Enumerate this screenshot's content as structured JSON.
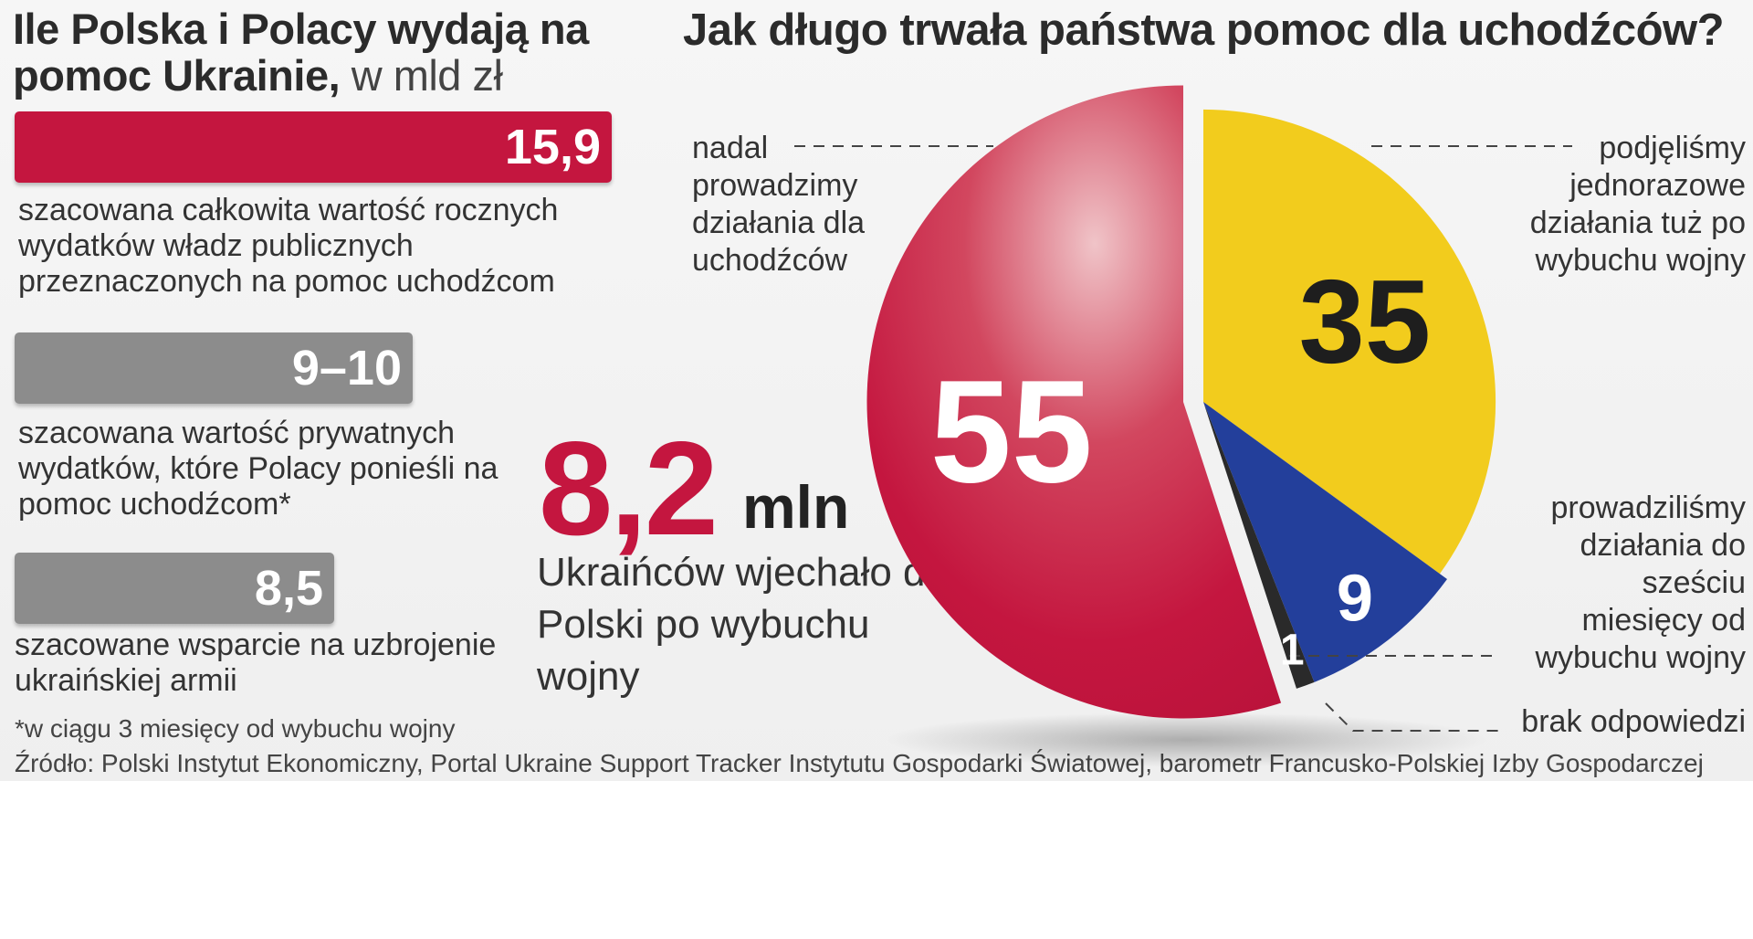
{
  "left": {
    "title": "Ile Polska i Polacy wydają na pomoc Ukrainie,",
    "title_unit": "w mld zł",
    "footnote": "*w ciągu 3 miesięcy od wybuchu wojny",
    "source": "Źródło: Polski Instytut Ekonomiczny, Portal Ukraine Support Tracker Instytutu Gospodarki Światowej, barometr Francusko-Polskiej Izby Gospodarczej"
  },
  "bars": [
    {
      "label": "15,9",
      "value": 15.9,
      "color": "#c4163f",
      "desc": "szacowana całkowita wartość rocznych wydatków władz publicznych przeznaczonych na pomoc uchodźcom"
    },
    {
      "label": "9–10",
      "value": 9.5,
      "color": "#8c8c8c",
      "desc": "szacowana wartość prywatnych wydatków, które Polacy ponieśli na pomoc uchodźcom*"
    },
    {
      "label": "8,5",
      "value": 8.5,
      "color": "#8c8c8c",
      "desc": "szacowane wsparcie na uzbrojenie ukraińskiej armii"
    }
  ],
  "stat": {
    "number": "8,2",
    "unit": "mln",
    "desc": "Ukraińców wjechało do Polski po wybuchu wojny",
    "color": "#c4163f"
  },
  "chart_data": {
    "type": "pie",
    "title": "Jak długo trwała państwa pomoc dla uchodźców?",
    "slices": [
      {
        "name": "podjęliśmy jednorazowe działania tuż po wybuchu wojny",
        "value": 35,
        "label": "35",
        "color": "#f2cc1d"
      },
      {
        "name": "prowadziliśmy działania do sześciu miesięcy od wybuchu wojny",
        "value": 9,
        "label": "9",
        "color": "#233f9b"
      },
      {
        "name": "brak odpowiedzi",
        "value": 1,
        "label": "1",
        "color": "#2a2a2a"
      },
      {
        "name": "nadal prowadzimy działania dla uchodźców",
        "value": 55,
        "label": "55",
        "color": "#c4163f"
      }
    ]
  }
}
